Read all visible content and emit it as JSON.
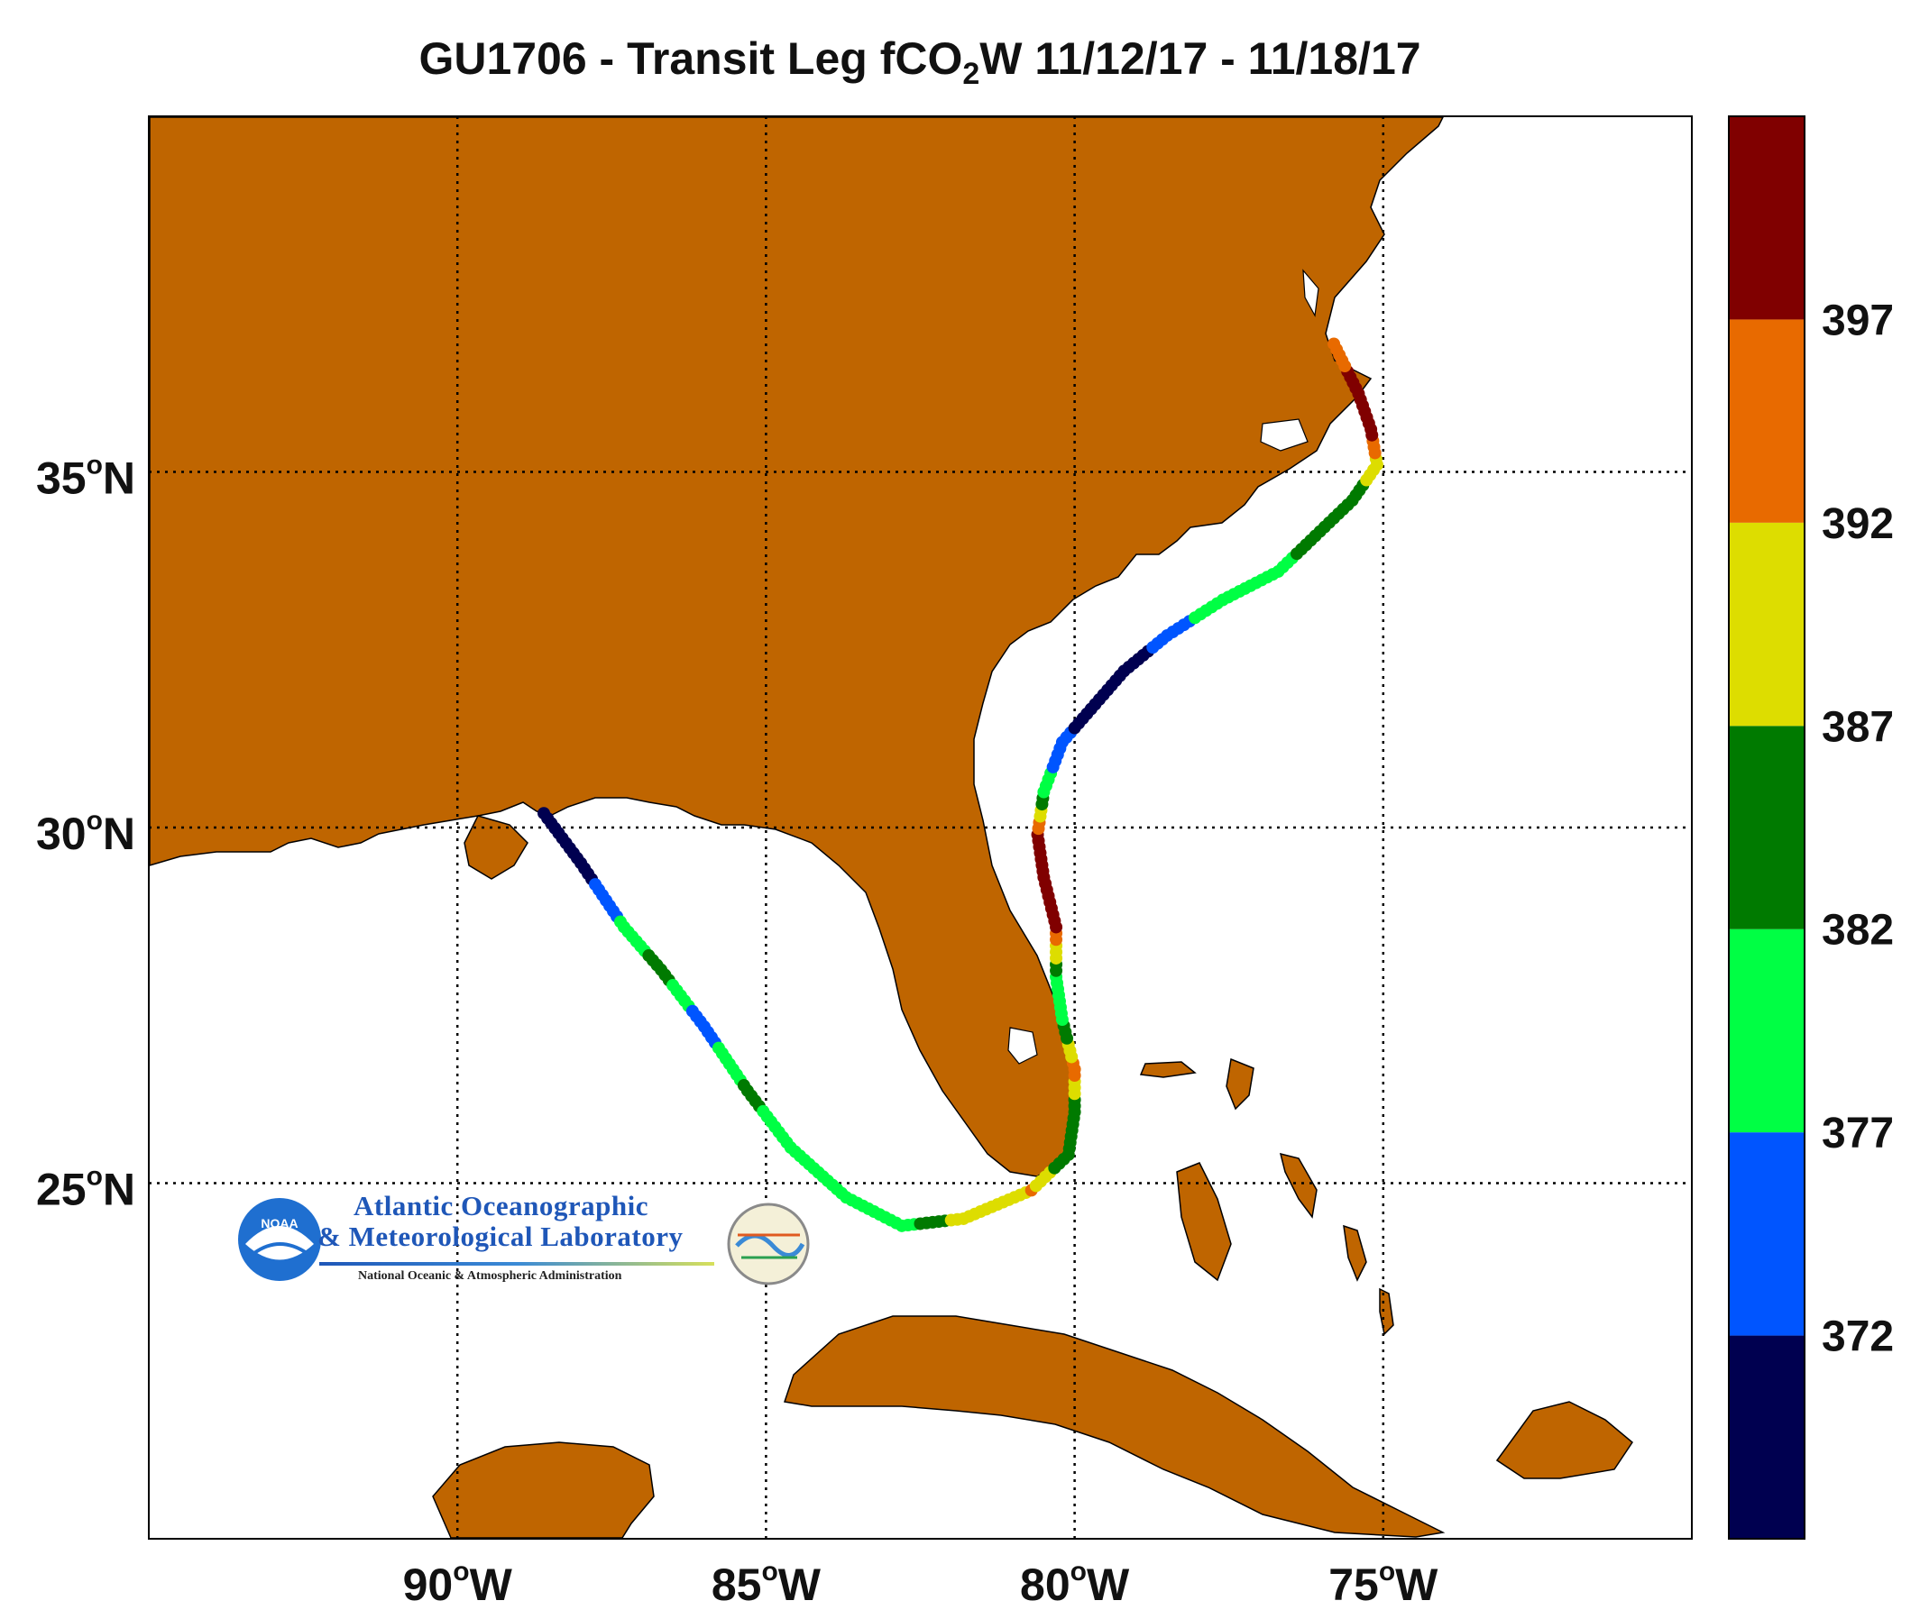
{
  "title": {
    "prefix": "GU1706 - Transit Leg fCO",
    "subscript": "2",
    "suffix": "W 11/12/17 - 11/18/17"
  },
  "map": {
    "lon_range": [
      -95,
      -70
    ],
    "lat_range": [
      20,
      40
    ],
    "land_color": "#bf6500",
    "grid": true,
    "lon_ticks": [
      {
        "value": -90,
        "label": "90",
        "sup": "o",
        "hemi": "W"
      },
      {
        "value": -85,
        "label": "85",
        "sup": "o",
        "hemi": "W"
      },
      {
        "value": -80,
        "label": "80",
        "sup": "o",
        "hemi": "W"
      },
      {
        "value": -75,
        "label": "75",
        "sup": "o",
        "hemi": "W"
      }
    ],
    "lat_ticks": [
      {
        "value": 35,
        "label": "35",
        "sup": "o",
        "hemi": "N"
      },
      {
        "value": 30,
        "label": "30",
        "sup": "o",
        "hemi": "N"
      },
      {
        "value": 25,
        "label": "25",
        "sup": "o",
        "hemi": "N"
      }
    ]
  },
  "colorbar": {
    "range": [
      367,
      402
    ],
    "bins": [
      {
        "from": 367,
        "to": 372,
        "color": "#000050"
      },
      {
        "from": 372,
        "to": 377,
        "color": "#0055ff"
      },
      {
        "from": 377,
        "to": 382,
        "color": "#00ff44"
      },
      {
        "from": 382,
        "to": 387,
        "color": "#007a00"
      },
      {
        "from": 387,
        "to": 392,
        "color": "#dddd00"
      },
      {
        "from": 392,
        "to": 397,
        "color": "#e86a00"
      },
      {
        "from": 397,
        "to": 402,
        "color": "#800000"
      }
    ],
    "tick_labels": [
      "372",
      "377",
      "382",
      "387",
      "392",
      "397"
    ]
  },
  "chart_data": {
    "type": "scatter",
    "title": "GU1706 - Transit Leg fCO2W 11/12/17 - 11/18/17",
    "xlabel": "",
    "ylabel": "",
    "xlim": [
      -95,
      -70
    ],
    "ylim": [
      20,
      40
    ],
    "color_variable": "fCO2W",
    "track": [
      {
        "lon": -88.6,
        "lat": 30.2,
        "fco2": 369
      },
      {
        "lon": -88.0,
        "lat": 29.5,
        "fco2": 369
      },
      {
        "lon": -87.3,
        "lat": 28.6,
        "fco2": 378
      },
      {
        "lon": -86.7,
        "lat": 28.0,
        "fco2": 384
      },
      {
        "lon": -86.0,
        "lat": 27.2,
        "fco2": 374
      },
      {
        "lon": -85.3,
        "lat": 26.3,
        "fco2": 383
      },
      {
        "lon": -84.6,
        "lat": 25.5,
        "fco2": 380
      },
      {
        "lon": -83.7,
        "lat": 24.8,
        "fco2": 379
      },
      {
        "lon": -82.8,
        "lat": 24.4,
        "fco2": 380
      },
      {
        "lon": -81.8,
        "lat": 24.5,
        "fco2": 389
      },
      {
        "lon": -80.7,
        "lat": 24.9,
        "fco2": 392
      },
      {
        "lon": -80.1,
        "lat": 25.4,
        "fco2": 382
      },
      {
        "lon": -80.0,
        "lat": 26.0,
        "fco2": 384
      },
      {
        "lon": -80.0,
        "lat": 26.6,
        "fco2": 394
      },
      {
        "lon": -80.2,
        "lat": 27.3,
        "fco2": 381
      },
      {
        "lon": -80.3,
        "lat": 27.9,
        "fco2": 380
      },
      {
        "lon": -80.3,
        "lat": 28.6,
        "fco2": 399
      },
      {
        "lon": -80.5,
        "lat": 29.3,
        "fco2": 399
      },
      {
        "lon": -80.6,
        "lat": 29.9,
        "fco2": 398
      },
      {
        "lon": -80.5,
        "lat": 30.5,
        "fco2": 380
      },
      {
        "lon": -80.2,
        "lat": 31.2,
        "fco2": 373
      },
      {
        "lon": -79.6,
        "lat": 31.8,
        "fco2": 369
      },
      {
        "lon": -79.2,
        "lat": 32.2,
        "fco2": 369
      },
      {
        "lon": -78.5,
        "lat": 32.7,
        "fco2": 374
      },
      {
        "lon": -77.6,
        "lat": 33.2,
        "fco2": 381
      },
      {
        "lon": -76.7,
        "lat": 33.6,
        "fco2": 380
      },
      {
        "lon": -76.1,
        "lat": 34.1,
        "fco2": 384
      },
      {
        "lon": -75.5,
        "lat": 34.6,
        "fco2": 384
      },
      {
        "lon": -75.1,
        "lat": 35.1,
        "fco2": 390
      },
      {
        "lon": -75.2,
        "lat": 35.6,
        "fco2": 399
      },
      {
        "lon": -75.4,
        "lat": 36.1,
        "fco2": 399
      },
      {
        "lon": -75.8,
        "lat": 36.8,
        "fco2": 395
      }
    ]
  },
  "logo": {
    "line1": "Atlantic Oceanographic",
    "line2": "& Meteorological Laboratory",
    "line3": "National Oceanic & Atmospheric Administration",
    "badge": "NOAA"
  }
}
